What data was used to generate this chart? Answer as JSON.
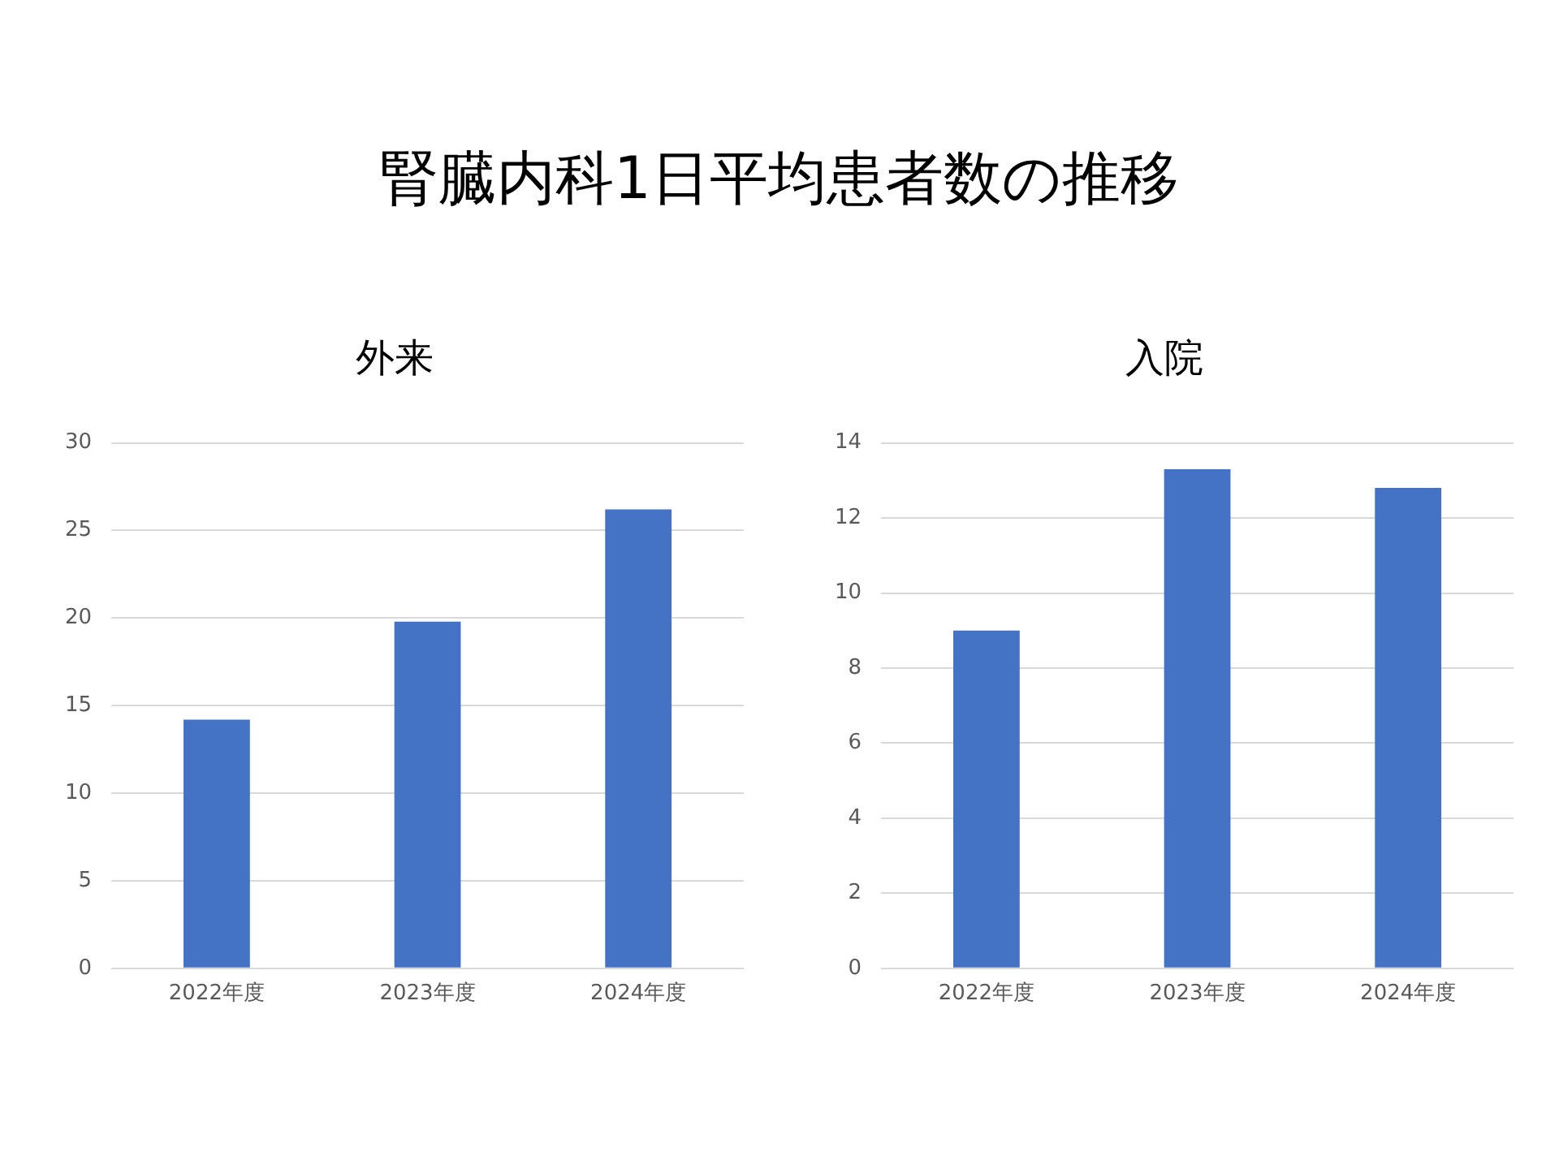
{
  "chart_data": [
    {
      "type": "bar",
      "title": "外来",
      "annotations": [
        "腎臓内科1日平均患者数の推移"
      ],
      "categories": [
        "2022年度",
        "2023年度",
        "2024年度"
      ],
      "values": [
        14.2,
        19.8,
        26.2
      ],
      "color": "#4472c4",
      "ylim": [
        0,
        30
      ],
      "yticks": [
        0,
        5,
        10,
        15,
        20,
        25,
        30
      ],
      "grid": "y",
      "legend": false
    },
    {
      "type": "bar",
      "title": "入院",
      "categories": [
        "2022年度",
        "2023年度",
        "2024年度"
      ],
      "values": [
        9.0,
        13.3,
        12.8
      ],
      "color": "#4472c4",
      "ylim": [
        0,
        14
      ],
      "yticks": [
        0,
        2,
        4,
        6,
        8,
        10,
        12,
        14
      ],
      "grid": "y",
      "legend": false
    }
  ]
}
